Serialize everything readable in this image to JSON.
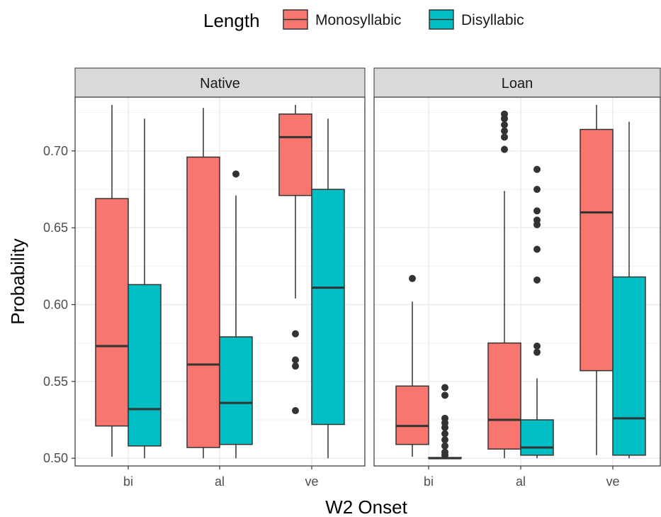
{
  "chart_data": {
    "type": "boxplot",
    "xlabel": "W2 Onset",
    "ylabel": "Probability",
    "ylim": [
      0.495,
      0.735
    ],
    "y_ticks": [
      "0.50",
      "0.55",
      "0.60",
      "0.65",
      "0.70"
    ],
    "categories": [
      "bi",
      "al",
      "ve"
    ],
    "legend": {
      "title": "Length",
      "position": "top",
      "items": [
        {
          "name": "Monosyllabic",
          "color": "#F8766D"
        },
        {
          "name": "Disyllabic",
          "color": "#00BFC4"
        }
      ]
    },
    "panels": [
      {
        "label": "Native",
        "series": [
          {
            "name": "Monosyllabic",
            "boxes": [
              {
                "category": "bi",
                "whisker_low": 0.501,
                "q1": 0.521,
                "median": 0.573,
                "q3": 0.669,
                "whisker_high": 0.73,
                "outliers": []
              },
              {
                "category": "al",
                "whisker_low": 0.5,
                "q1": 0.507,
                "median": 0.561,
                "q3": 0.696,
                "whisker_high": 0.728,
                "outliers": []
              },
              {
                "category": "ve",
                "whisker_low": 0.604,
                "q1": 0.671,
                "median": 0.709,
                "q3": 0.724,
                "whisker_high": 0.73,
                "outliers": [
                  0.581,
                  0.564,
                  0.56,
                  0.531
                ]
              }
            ]
          },
          {
            "name": "Disyllabic",
            "boxes": [
              {
                "category": "bi",
                "whisker_low": 0.5,
                "q1": 0.508,
                "median": 0.532,
                "q3": 0.613,
                "whisker_high": 0.721,
                "outliers": []
              },
              {
                "category": "al",
                "whisker_low": 0.5,
                "q1": 0.509,
                "median": 0.536,
                "q3": 0.579,
                "whisker_high": 0.671,
                "outliers": [
                  0.685
                ]
              },
              {
                "category": "ve",
                "whisker_low": 0.5,
                "q1": 0.522,
                "median": 0.611,
                "q3": 0.675,
                "whisker_high": 0.721,
                "outliers": []
              }
            ]
          }
        ]
      },
      {
        "label": "Loan",
        "series": [
          {
            "name": "Monosyllabic",
            "boxes": [
              {
                "category": "bi",
                "whisker_low": 0.501,
                "q1": 0.509,
                "median": 0.521,
                "q3": 0.547,
                "whisker_high": 0.602,
                "outliers": [
                  0.617
                ]
              },
              {
                "category": "al",
                "whisker_low": 0.5,
                "q1": 0.506,
                "median": 0.525,
                "q3": 0.575,
                "whisker_high": 0.674,
                "outliers": [
                  0.701,
                  0.709,
                  0.713,
                  0.717,
                  0.721,
                  0.724
                ]
              },
              {
                "category": "ve",
                "whisker_low": 0.502,
                "q1": 0.557,
                "median": 0.66,
                "q3": 0.714,
                "whisker_high": 0.73,
                "outliers": []
              }
            ]
          },
          {
            "name": "Disyllabic",
            "boxes": [
              {
                "category": "bi",
                "whisker_low": 0.5,
                "q1": 0.5,
                "median": 0.5,
                "q3": 0.5005,
                "whisker_high": 0.501,
                "outliers": [
                  0.546,
                  0.541,
                  0.526,
                  0.523,
                  0.52,
                  0.516,
                  0.512,
                  0.508,
                  0.504,
                  0.502
                ]
              },
              {
                "category": "al",
                "whisker_low": 0.5,
                "q1": 0.502,
                "median": 0.507,
                "q3": 0.525,
                "whisker_high": 0.552,
                "outliers": [
                  0.569,
                  0.573,
                  0.616,
                  0.636,
                  0.652,
                  0.655,
                  0.661,
                  0.675,
                  0.688
                ]
              },
              {
                "category": "ve",
                "whisker_low": 0.5,
                "q1": 0.502,
                "median": 0.526,
                "q3": 0.618,
                "whisker_high": 0.719,
                "outliers": []
              }
            ]
          }
        ]
      }
    ]
  }
}
